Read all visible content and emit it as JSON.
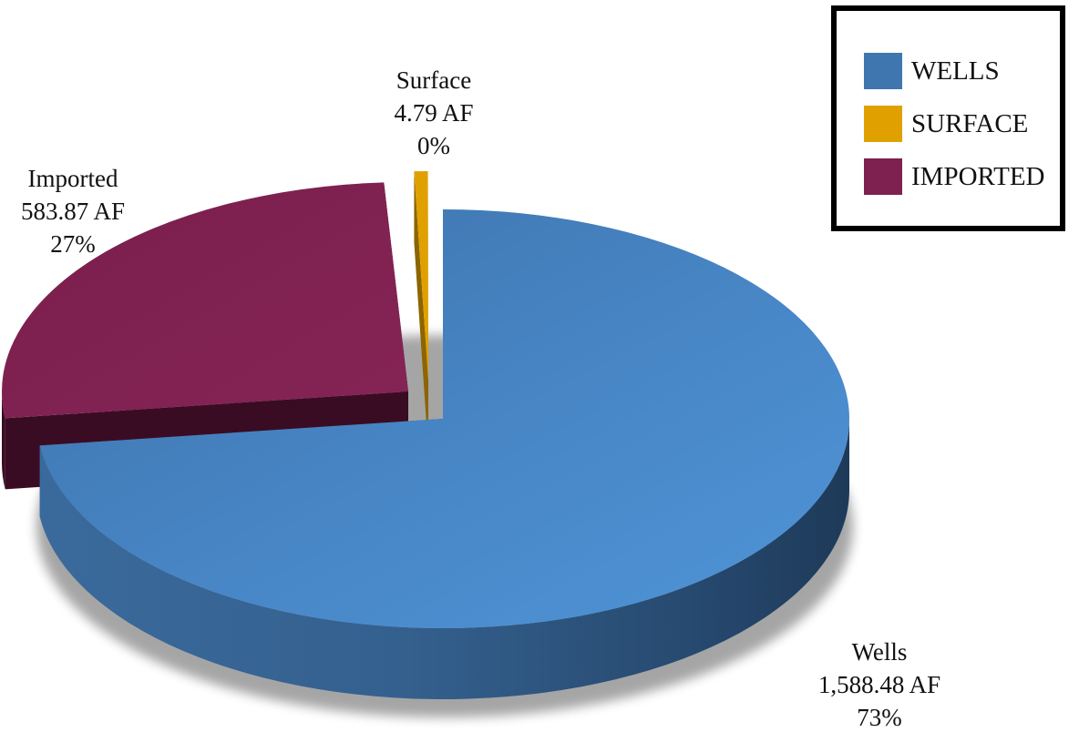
{
  "chart_data": {
    "type": "pie",
    "title": "",
    "slices": [
      {
        "name": "Wells",
        "value": 1588.48,
        "value_label": "1,588.48 AF",
        "percent_label": "73%",
        "color": "#4684c2"
      },
      {
        "name": "Imported",
        "value": 583.87,
        "value_label": "583.87 AF",
        "percent_label": "27%",
        "color": "#7e2150"
      },
      {
        "name": "Surface",
        "value": 4.79,
        "value_label": "4.79 AF",
        "percent_label": "0%",
        "color": "#e0a100"
      }
    ],
    "legend": {
      "position": "top-right",
      "entries": [
        {
          "label": "WELLS",
          "color": "#3f76b0"
        },
        {
          "label": "SURFACE",
          "color": "#e0a100"
        },
        {
          "label": "IMPORTED",
          "color": "#7e2150"
        }
      ]
    },
    "style": "3d-exploded"
  }
}
